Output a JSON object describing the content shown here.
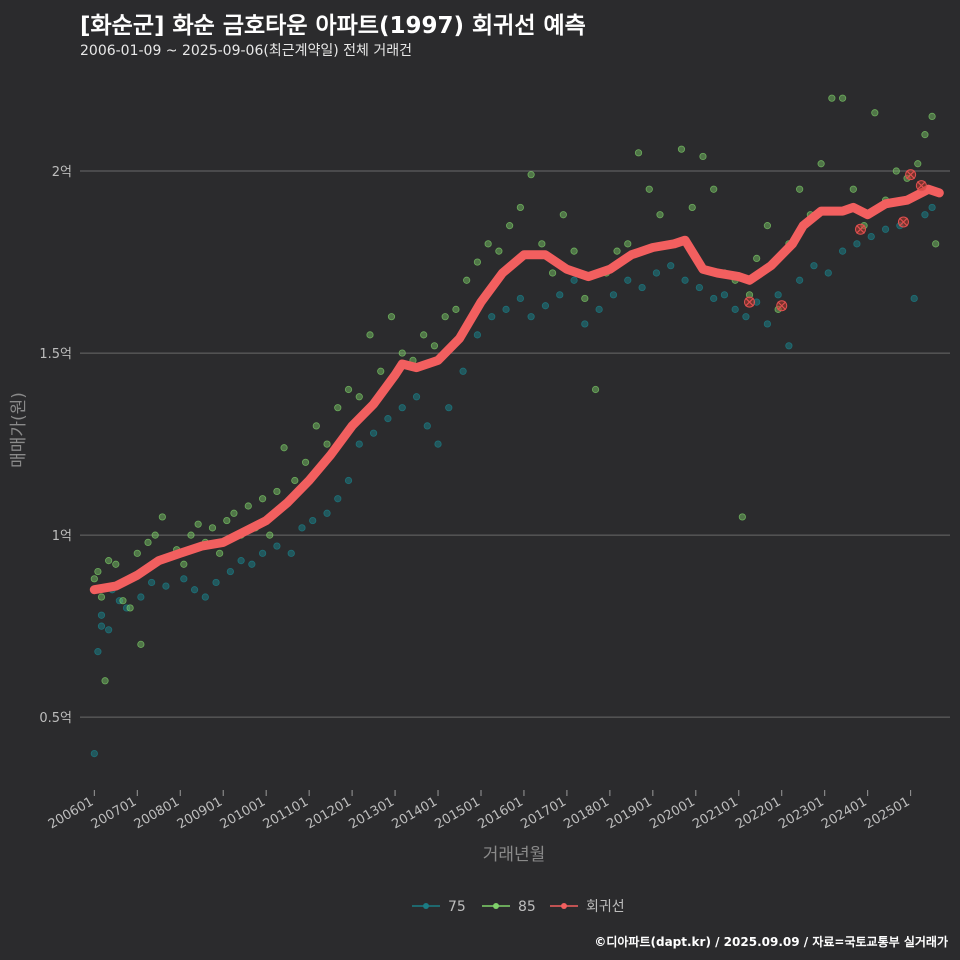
{
  "header": {
    "title": "[화순군] 화순 금호타운 아파트(1997) 회귀선 예측",
    "subtitle": "2006-01-09 ~ 2025-09-06(최근계약일) 전체 거래건"
  },
  "footer": {
    "credit": "©디아파트(dapt.kr) / 2025.09.09 / 자료=국토교통부 실거래가"
  },
  "colors": {
    "background": "#2b2b2d",
    "series_75": "#1b7c84",
    "series_85": "#7fd16a",
    "regression": "#f25f5f",
    "grid": "#6a6a6a"
  },
  "chart_data": {
    "type": "scatter",
    "xlabel": "거래년월",
    "ylabel": "매매가(원)",
    "x_range": [
      "2005-09",
      "2025-12"
    ],
    "ylim": [
      0.3,
      2.25
    ],
    "y_unit": "억",
    "yticks": [
      {
        "value": 0.5,
        "label": "0.5억"
      },
      {
        "value": 1.0,
        "label": "1억"
      },
      {
        "value": 1.5,
        "label": "1.5억"
      },
      {
        "value": 2.0,
        "label": "2억"
      }
    ],
    "xticks": [
      "200601",
      "200701",
      "200801",
      "200901",
      "201001",
      "201101",
      "201201",
      "201301",
      "201401",
      "201501",
      "201601",
      "201701",
      "201801",
      "201901",
      "202001",
      "202101",
      "202201",
      "202301",
      "202401",
      "202501"
    ],
    "grid": "horizontal",
    "legend": {
      "position": "bottom",
      "entries": [
        "75",
        "85",
        "회귀선"
      ]
    },
    "series": [
      {
        "name": "75",
        "type": "scatter",
        "points": [
          [
            "2006-01",
            0.4
          ],
          [
            "2006-02",
            0.68
          ],
          [
            "2006-03",
            0.75
          ],
          [
            "2006-03",
            0.78
          ],
          [
            "2006-05",
            0.74
          ],
          [
            "2006-06",
            0.85
          ],
          [
            "2006-08",
            0.82
          ],
          [
            "2006-10",
            0.8
          ],
          [
            "2007-02",
            0.83
          ],
          [
            "2007-05",
            0.87
          ],
          [
            "2007-09",
            0.86
          ],
          [
            "2008-02",
            0.88
          ],
          [
            "2008-05",
            0.85
          ],
          [
            "2008-08",
            0.83
          ],
          [
            "2008-11",
            0.87
          ],
          [
            "2009-03",
            0.9
          ],
          [
            "2009-06",
            0.93
          ],
          [
            "2009-09",
            0.92
          ],
          [
            "2009-12",
            0.95
          ],
          [
            "2010-04",
            0.97
          ],
          [
            "2010-08",
            0.95
          ],
          [
            "2010-11",
            1.02
          ],
          [
            "2011-02",
            1.04
          ],
          [
            "2011-06",
            1.06
          ],
          [
            "2011-09",
            1.1
          ],
          [
            "2011-12",
            1.15
          ],
          [
            "2012-03",
            1.25
          ],
          [
            "2012-07",
            1.28
          ],
          [
            "2012-11",
            1.32
          ],
          [
            "2013-03",
            1.35
          ],
          [
            "2013-07",
            1.38
          ],
          [
            "2013-10",
            1.3
          ],
          [
            "2014-01",
            1.25
          ],
          [
            "2014-04",
            1.35
          ],
          [
            "2014-08",
            1.45
          ],
          [
            "2014-12",
            1.55
          ],
          [
            "2015-04",
            1.6
          ],
          [
            "2015-08",
            1.62
          ],
          [
            "2015-12",
            1.65
          ],
          [
            "2016-03",
            1.6
          ],
          [
            "2016-07",
            1.63
          ],
          [
            "2016-11",
            1.66
          ],
          [
            "2017-03",
            1.7
          ],
          [
            "2017-06",
            1.58
          ],
          [
            "2017-10",
            1.62
          ],
          [
            "2018-02",
            1.66
          ],
          [
            "2018-06",
            1.7
          ],
          [
            "2018-10",
            1.68
          ],
          [
            "2019-02",
            1.72
          ],
          [
            "2019-06",
            1.74
          ],
          [
            "2019-10",
            1.7
          ],
          [
            "2020-02",
            1.68
          ],
          [
            "2020-06",
            1.65
          ],
          [
            "2020-09",
            1.66
          ],
          [
            "2020-12",
            1.62
          ],
          [
            "2021-03",
            1.6
          ],
          [
            "2021-06",
            1.64
          ],
          [
            "2021-09",
            1.58
          ],
          [
            "2021-12",
            1.66
          ],
          [
            "2022-03",
            1.52
          ],
          [
            "2022-06",
            1.7
          ],
          [
            "2022-10",
            1.74
          ],
          [
            "2023-02",
            1.72
          ],
          [
            "2023-06",
            1.78
          ],
          [
            "2023-10",
            1.8
          ],
          [
            "2024-02",
            1.82
          ],
          [
            "2024-06",
            1.84
          ],
          [
            "2024-10",
            1.85
          ],
          [
            "2025-02",
            1.65
          ],
          [
            "2025-05",
            1.88
          ],
          [
            "2025-07",
            1.9
          ]
        ]
      },
      {
        "name": "85",
        "type": "scatter",
        "points": [
          [
            "2006-01",
            0.85
          ],
          [
            "2006-01",
            0.88
          ],
          [
            "2006-02",
            0.9
          ],
          [
            "2006-03",
            0.83
          ],
          [
            "2006-04",
            0.6
          ],
          [
            "2006-05",
            0.93
          ],
          [
            "2006-07",
            0.92
          ],
          [
            "2006-09",
            0.82
          ],
          [
            "2006-11",
            0.8
          ],
          [
            "2007-01",
            0.95
          ],
          [
            "2007-02",
            0.7
          ],
          [
            "2007-04",
            0.98
          ],
          [
            "2007-06",
            1.0
          ],
          [
            "2007-08",
            1.05
          ],
          [
            "2007-10",
            0.94
          ],
          [
            "2007-12",
            0.96
          ],
          [
            "2008-02",
            0.92
          ],
          [
            "2008-04",
            1.0
          ],
          [
            "2008-06",
            1.03
          ],
          [
            "2008-08",
            0.98
          ],
          [
            "2008-10",
            1.02
          ],
          [
            "2008-12",
            0.95
          ],
          [
            "2009-02",
            1.04
          ],
          [
            "2009-04",
            1.06
          ],
          [
            "2009-06",
            1.0
          ],
          [
            "2009-08",
            1.08
          ],
          [
            "2009-10",
            1.02
          ],
          [
            "2009-12",
            1.1
          ],
          [
            "2010-02",
            1.0
          ],
          [
            "2010-04",
            1.12
          ],
          [
            "2010-06",
            1.24
          ],
          [
            "2010-09",
            1.15
          ],
          [
            "2010-12",
            1.2
          ],
          [
            "2011-03",
            1.3
          ],
          [
            "2011-06",
            1.25
          ],
          [
            "2011-09",
            1.35
          ],
          [
            "2011-12",
            1.4
          ],
          [
            "2012-03",
            1.38
          ],
          [
            "2012-06",
            1.55
          ],
          [
            "2012-09",
            1.45
          ],
          [
            "2012-12",
            1.6
          ],
          [
            "2013-03",
            1.5
          ],
          [
            "2013-06",
            1.48
          ],
          [
            "2013-09",
            1.55
          ],
          [
            "2013-12",
            1.52
          ],
          [
            "2014-03",
            1.6
          ],
          [
            "2014-06",
            1.62
          ],
          [
            "2014-09",
            1.7
          ],
          [
            "2014-12",
            1.75
          ],
          [
            "2015-03",
            1.8
          ],
          [
            "2015-06",
            1.78
          ],
          [
            "2015-09",
            1.85
          ],
          [
            "2015-12",
            1.9
          ],
          [
            "2016-03",
            1.99
          ],
          [
            "2016-06",
            1.8
          ],
          [
            "2016-09",
            1.72
          ],
          [
            "2016-12",
            1.88
          ],
          [
            "2017-03",
            1.78
          ],
          [
            "2017-06",
            1.65
          ],
          [
            "2017-09",
            1.4
          ],
          [
            "2017-12",
            1.72
          ],
          [
            "2018-03",
            1.78
          ],
          [
            "2018-06",
            1.8
          ],
          [
            "2018-09",
            2.05
          ],
          [
            "2018-12",
            1.95
          ],
          [
            "2019-03",
            1.88
          ],
          [
            "2019-06",
            1.8
          ],
          [
            "2019-09",
            2.06
          ],
          [
            "2019-12",
            1.9
          ],
          [
            "2020-03",
            2.04
          ],
          [
            "2020-06",
            1.95
          ],
          [
            "2020-09",
            1.72
          ],
          [
            "2020-12",
            1.7
          ],
          [
            "2021-02",
            1.05
          ],
          [
            "2021-04",
            1.66
          ],
          [
            "2021-06",
            1.76
          ],
          [
            "2021-09",
            1.85
          ],
          [
            "2021-12",
            1.62
          ],
          [
            "2022-03",
            1.8
          ],
          [
            "2022-06",
            1.95
          ],
          [
            "2022-09",
            1.88
          ],
          [
            "2022-12",
            2.02
          ],
          [
            "2023-03",
            2.2
          ],
          [
            "2023-06",
            2.2
          ],
          [
            "2023-09",
            1.95
          ],
          [
            "2023-12",
            1.85
          ],
          [
            "2024-03",
            2.16
          ],
          [
            "2024-06",
            1.92
          ],
          [
            "2024-09",
            2.0
          ],
          [
            "2024-12",
            1.98
          ],
          [
            "2025-03",
            2.02
          ],
          [
            "2025-05",
            2.1
          ],
          [
            "2025-07",
            2.15
          ],
          [
            "2025-08",
            1.8
          ]
        ]
      },
      {
        "name": "회귀선",
        "type": "line",
        "points": [
          [
            "2006-01",
            0.85
          ],
          [
            "2006-07",
            0.86
          ],
          [
            "2007-01",
            0.89
          ],
          [
            "2007-07",
            0.93
          ],
          [
            "2008-01",
            0.95
          ],
          [
            "2008-07",
            0.97
          ],
          [
            "2009-01",
            0.98
          ],
          [
            "2009-07",
            1.01
          ],
          [
            "2010-01",
            1.04
          ],
          [
            "2010-07",
            1.09
          ],
          [
            "2011-01",
            1.15
          ],
          [
            "2011-07",
            1.22
          ],
          [
            "2012-01",
            1.3
          ],
          [
            "2012-07",
            1.36
          ],
          [
            "2013-01",
            1.44
          ],
          [
            "2013-03",
            1.47
          ],
          [
            "2013-07",
            1.46
          ],
          [
            "2014-01",
            1.48
          ],
          [
            "2014-07",
            1.54
          ],
          [
            "2015-01",
            1.64
          ],
          [
            "2015-07",
            1.72
          ],
          [
            "2016-01",
            1.77
          ],
          [
            "2016-07",
            1.77
          ],
          [
            "2017-01",
            1.73
          ],
          [
            "2017-07",
            1.71
          ],
          [
            "2018-01",
            1.73
          ],
          [
            "2018-07",
            1.77
          ],
          [
            "2019-01",
            1.79
          ],
          [
            "2019-07",
            1.8
          ],
          [
            "2019-10",
            1.81
          ],
          [
            "2020-03",
            1.73
          ],
          [
            "2020-07",
            1.72
          ],
          [
            "2021-01",
            1.71
          ],
          [
            "2021-04",
            1.7
          ],
          [
            "2021-10",
            1.74
          ],
          [
            "2022-04",
            1.8
          ],
          [
            "2022-07",
            1.85
          ],
          [
            "2022-12",
            1.89
          ],
          [
            "2023-06",
            1.89
          ],
          [
            "2023-09",
            1.9
          ],
          [
            "2024-01",
            1.88
          ],
          [
            "2024-06",
            1.91
          ],
          [
            "2024-12",
            1.92
          ],
          [
            "2025-06",
            1.95
          ],
          [
            "2025-09",
            1.94
          ]
        ]
      },
      {
        "name": "predicted-markers",
        "type": "markers",
        "points": [
          [
            "2021-04",
            1.64
          ],
          [
            "2022-01",
            1.63
          ],
          [
            "2023-11",
            1.84
          ],
          [
            "2024-11",
            1.86
          ],
          [
            "2025-01",
            1.99
          ],
          [
            "2025-04",
            1.96
          ]
        ]
      }
    ]
  }
}
